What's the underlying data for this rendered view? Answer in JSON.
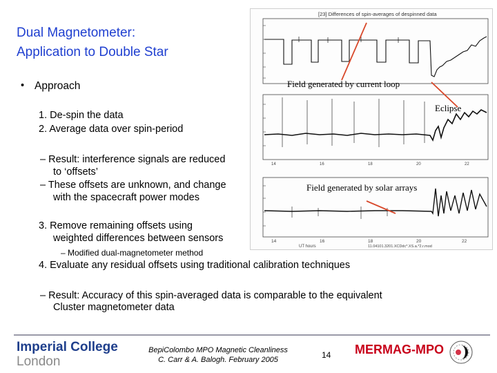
{
  "slide": {
    "title_line1": "Dual Magnetometer:",
    "title_line2": "Application to Double Star",
    "bullet": "•",
    "approach": "Approach",
    "step1": "1.  De-spin the data",
    "step2": "2.  Average data over spin-period",
    "result1_line1": "–  Result: interference signals are reduced",
    "result1_line2": "to ‘offsets’",
    "result2_line1": "–  These offsets are unknown, and change",
    "result2_line2": "with the spacecraft power modes",
    "step3_line1": "3.  Remove remaining offsets using",
    "step3_line2": "weighted differences between sensors",
    "step3_sub": "–  Modified dual-magnetometer method",
    "step4": "4.  Evaluate any residual offsets using traditional calibration techniques",
    "result3_line1": "–  Result: Accuracy of this spin-averaged data is comparable to the equivalent",
    "result3_line2": "Cluster magnetometer data"
  },
  "figure": {
    "header": "[23] Differences of spin-averages of despinned data",
    "annotation_loop": "Field generated by current loop",
    "annotation_eclipse": "Eclipse",
    "annotation_solar": "Field generated by solar arrays",
    "annotation_color": "#d8482a",
    "bottom_x_ticks": [
      "14",
      "16",
      "18",
      "20",
      "22"
    ],
    "bottom_x_label": "UT hours",
    "footer_ref": "11.04101.3201.XCDdc*.XS.a.*2.r.mod"
  },
  "footer": {
    "logo_line1": "Imperial College",
    "logo_line2": "London",
    "center_line1": "BepiColombo MPO Magnetic Cleanliness",
    "center_line2": "C. Carr & A. Balogh. February 2005",
    "page_number": "14",
    "brand": "MERMAG-MPO",
    "brand_color": "#c8001a",
    "title_color": "#1f3fd0"
  }
}
